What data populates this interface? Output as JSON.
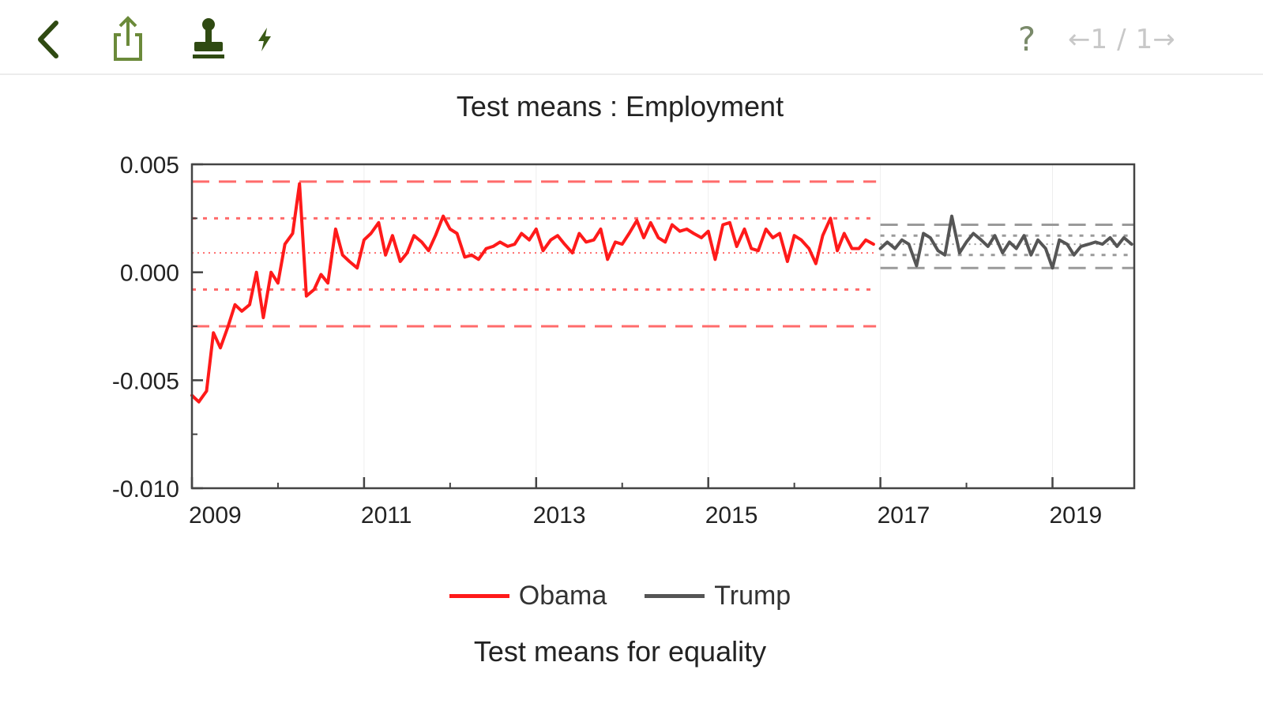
{
  "toolbar": {
    "help_label": "?",
    "pager": {
      "prev": "←",
      "current": "1",
      "sep": "/",
      "total": "1",
      "next": "→"
    }
  },
  "chart_data": {
    "type": "line",
    "title": "Test means : Employment",
    "subtitle": "Test means for equality",
    "xlabel": "",
    "ylabel": "",
    "xlim": [
      2009.0,
      2019.95
    ],
    "ylim": [
      -0.01,
      0.005
    ],
    "x_ticks": [
      "2009",
      "2011",
      "2013",
      "2015",
      "2017",
      "2019"
    ],
    "y_ticks": [
      "0.005",
      "0.000",
      "-0.005",
      "-0.010"
    ],
    "grid": true,
    "legend_position": "bottom",
    "series": [
      {
        "name": "Obama",
        "color": "#ff1a1a",
        "x": [
          2009.0,
          2009.08,
          2009.17,
          2009.25,
          2009.33,
          2009.42,
          2009.5,
          2009.58,
          2009.67,
          2009.75,
          2009.83,
          2009.92,
          2010.0,
          2010.08,
          2010.17,
          2010.25,
          2010.33,
          2010.42,
          2010.5,
          2010.58,
          2010.67,
          2010.75,
          2010.83,
          2010.92,
          2011.0,
          2011.08,
          2011.17,
          2011.25,
          2011.33,
          2011.42,
          2011.5,
          2011.58,
          2011.67,
          2011.75,
          2011.83,
          2011.92,
          2012.0,
          2012.08,
          2012.17,
          2012.25,
          2012.33,
          2012.42,
          2012.5,
          2012.58,
          2012.67,
          2012.75,
          2012.83,
          2012.92,
          2013.0,
          2013.08,
          2013.17,
          2013.25,
          2013.33,
          2013.42,
          2013.5,
          2013.58,
          2013.67,
          2013.75,
          2013.83,
          2013.92,
          2014.0,
          2014.08,
          2014.17,
          2014.25,
          2014.33,
          2014.42,
          2014.5,
          2014.58,
          2014.67,
          2014.75,
          2014.83,
          2014.92,
          2015.0,
          2015.08,
          2015.17,
          2015.25,
          2015.33,
          2015.42,
          2015.5,
          2015.58,
          2015.67,
          2015.75,
          2015.83,
          2015.92,
          2016.0,
          2016.08,
          2016.17,
          2016.25,
          2016.33,
          2016.42,
          2016.5,
          2016.58,
          2016.67,
          2016.75,
          2016.83,
          2016.92
        ],
        "values": [
          -0.0057,
          -0.006,
          -0.0055,
          -0.0028,
          -0.0035,
          -0.0025,
          -0.0015,
          -0.0018,
          -0.0015,
          0.0,
          -0.0021,
          0.0,
          -0.0005,
          0.0013,
          0.0018,
          0.0041,
          -0.0011,
          -0.0008,
          -0.0001,
          -0.0005,
          0.002,
          0.0008,
          0.0005,
          0.0002,
          0.0015,
          0.0018,
          0.0023,
          0.0008,
          0.0017,
          0.0005,
          0.0009,
          0.0017,
          0.0014,
          0.001,
          0.0017,
          0.0026,
          0.002,
          0.0018,
          0.0007,
          0.0008,
          0.0006,
          0.0011,
          0.0012,
          0.0014,
          0.0012,
          0.0013,
          0.0018,
          0.0015,
          0.002,
          0.001,
          0.0015,
          0.0017,
          0.0013,
          0.0009,
          0.0018,
          0.0014,
          0.0015,
          0.002,
          0.0006,
          0.0014,
          0.0013,
          0.0018,
          0.0024,
          0.0016,
          0.0023,
          0.0016,
          0.0014,
          0.0022,
          0.0019,
          0.002,
          0.0018,
          0.0016,
          0.0019,
          0.0006,
          0.0022,
          0.0023,
          0.0012,
          0.002,
          0.0011,
          0.001,
          0.002,
          0.0016,
          0.0018,
          0.0005,
          0.0017,
          0.0015,
          0.0011,
          0.0004,
          0.0017,
          0.0025,
          0.001,
          0.0018,
          0.0011,
          0.0011,
          0.0015,
          0.0013
        ]
      },
      {
        "name": "Trump",
        "color": "#555555",
        "x": [
          2017.0,
          2017.08,
          2017.17,
          2017.25,
          2017.33,
          2017.42,
          2017.5,
          2017.58,
          2017.67,
          2017.75,
          2017.83,
          2017.92,
          2018.0,
          2018.08,
          2018.17,
          2018.25,
          2018.33,
          2018.42,
          2018.5,
          2018.58,
          2018.67,
          2018.75,
          2018.83,
          2018.92,
          2019.0,
          2019.08,
          2019.17,
          2019.25,
          2019.33,
          2019.42,
          2019.5,
          2019.58,
          2019.67,
          2019.75,
          2019.83,
          2019.92
        ],
        "values": [
          0.0011,
          0.0014,
          0.0011,
          0.0015,
          0.0013,
          0.0003,
          0.0018,
          0.0016,
          0.001,
          0.0008,
          0.0026,
          0.0009,
          0.0014,
          0.0018,
          0.0015,
          0.0012,
          0.0017,
          0.0009,
          0.0014,
          0.0011,
          0.0017,
          0.0008,
          0.0015,
          0.0011,
          0.0002,
          0.0015,
          0.0013,
          0.0008,
          0.0012,
          0.0013,
          0.0014,
          0.0013,
          0.0016,
          0.0012,
          0.0016,
          0.0013
        ]
      }
    ],
    "reference_lines": [
      {
        "series": "Obama",
        "style": "long-dash",
        "value": 0.0042,
        "x_range": [
          2009.0,
          2016.95
        ]
      },
      {
        "series": "Obama",
        "style": "dotted",
        "value": 0.0025,
        "x_range": [
          2009.0,
          2016.95
        ]
      },
      {
        "series": "Obama",
        "style": "dotted-fine",
        "value": 0.0009,
        "x_range": [
          2009.0,
          2016.95
        ]
      },
      {
        "series": "Obama",
        "style": "dotted",
        "value": -0.0008,
        "x_range": [
          2009.0,
          2016.95
        ]
      },
      {
        "series": "Obama",
        "style": "long-dash",
        "value": -0.0025,
        "x_range": [
          2009.0,
          2016.95
        ]
      },
      {
        "series": "Trump",
        "style": "long-dash",
        "value": 0.0022,
        "x_range": [
          2017.0,
          2019.95
        ]
      },
      {
        "series": "Trump",
        "style": "dotted",
        "value": 0.0017,
        "x_range": [
          2017.0,
          2019.95
        ]
      },
      {
        "series": "Trump",
        "style": "dotted-fine",
        "value": 0.0013,
        "x_range": [
          2017.0,
          2019.95
        ]
      },
      {
        "series": "Trump",
        "style": "dotted",
        "value": 0.0008,
        "x_range": [
          2017.0,
          2019.95
        ]
      },
      {
        "series": "Trump",
        "style": "long-dash",
        "value": 0.0002,
        "x_range": [
          2017.0,
          2019.95
        ]
      }
    ]
  }
}
